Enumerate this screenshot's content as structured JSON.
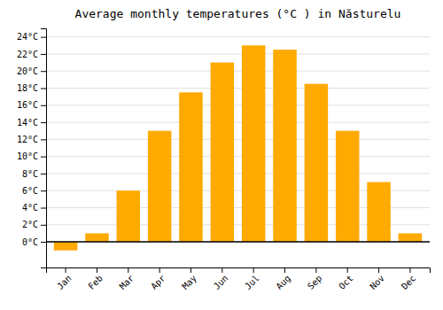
{
  "chart_data": {
    "type": "bar",
    "title": "Average monthly temperatures (°C ) in Năsturelu",
    "categories": [
      "Jan",
      "Feb",
      "Mar",
      "Apr",
      "May",
      "Jun",
      "Jul",
      "Aug",
      "Sep",
      "Oct",
      "Nov",
      "Dec"
    ],
    "values": [
      -1.0,
      1.0,
      6.0,
      13.0,
      17.5,
      21.0,
      23.0,
      22.5,
      18.5,
      13.0,
      7.0,
      1.0
    ],
    "color": "#FFAA00",
    "ylim": [
      -3,
      25
    ],
    "yticks": [
      {
        "value": 0,
        "label": "0°C"
      },
      {
        "value": 2,
        "label": "2°C"
      },
      {
        "value": 4,
        "label": "4°C"
      },
      {
        "value": 6,
        "label": "6°C"
      },
      {
        "value": 8,
        "label": "8°C"
      },
      {
        "value": 10,
        "label": "10°C"
      },
      {
        "value": 12,
        "label": "12°C"
      },
      {
        "value": 14,
        "label": "14°C"
      },
      {
        "value": 16,
        "label": "16°C"
      },
      {
        "value": 18,
        "label": "18°C"
      },
      {
        "value": 20,
        "label": "20°C"
      },
      {
        "value": 22,
        "label": "22°C"
      },
      {
        "value": 24,
        "label": "24°C"
      }
    ],
    "grid": true
  }
}
